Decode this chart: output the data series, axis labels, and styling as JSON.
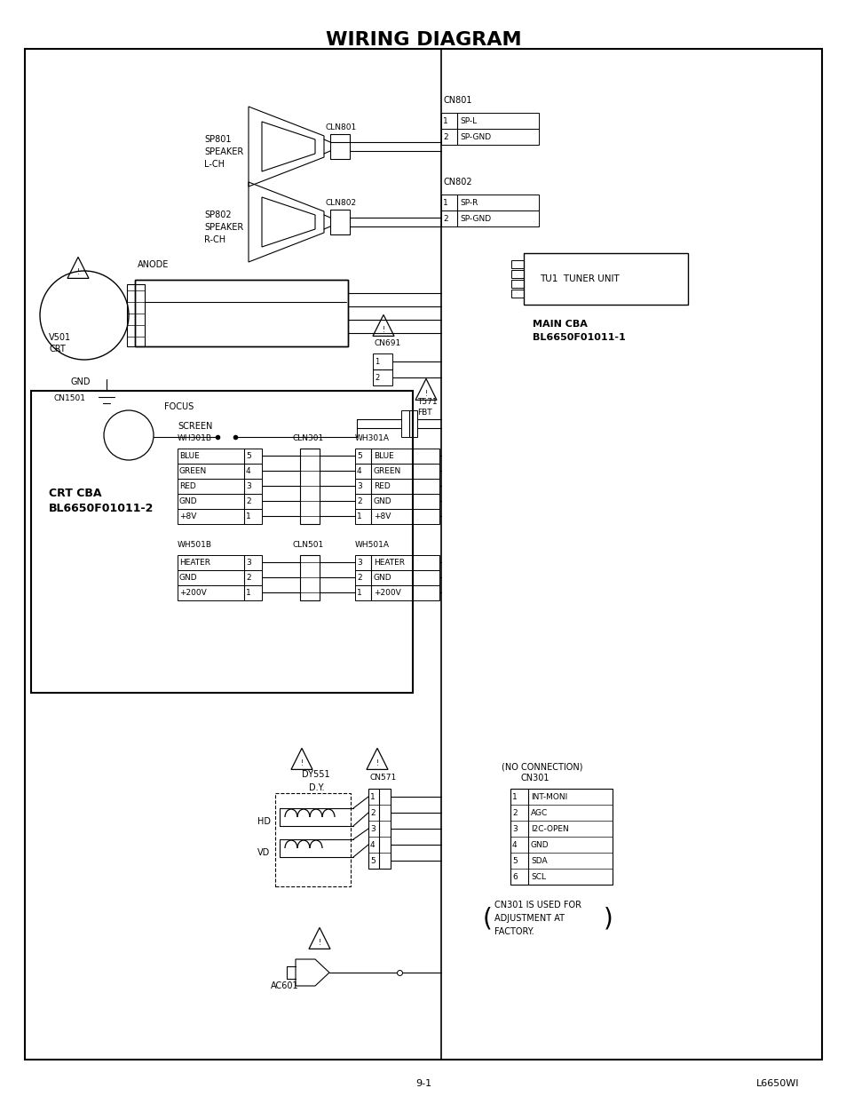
{
  "title": "WIRING DIAGRAM",
  "page_number": "9-1",
  "page_code": "L6650WI",
  "bg_color": "#ffffff",
  "cn801_pins": [
    "SP-L",
    "SP-GND"
  ],
  "cn802_pins": [
    "SP-R",
    "SP-GND"
  ],
  "wh301b_pins": [
    "BLUE",
    "GREEN",
    "RED",
    "GND",
    "+8V"
  ],
  "wh301a_pins": [
    "BLUE",
    "GREEN",
    "RED",
    "GND",
    "+8V"
  ],
  "wh501b_pins": [
    "HEATER",
    "GND",
    "+200V"
  ],
  "wh501a_pins": [
    "HEATER",
    "GND",
    "+200V"
  ],
  "cn301_pins": [
    "INT-MONI",
    "AGC",
    "I2C-OPEN",
    "GND",
    "SDA",
    "SCL"
  ],
  "cn571_count": 5
}
